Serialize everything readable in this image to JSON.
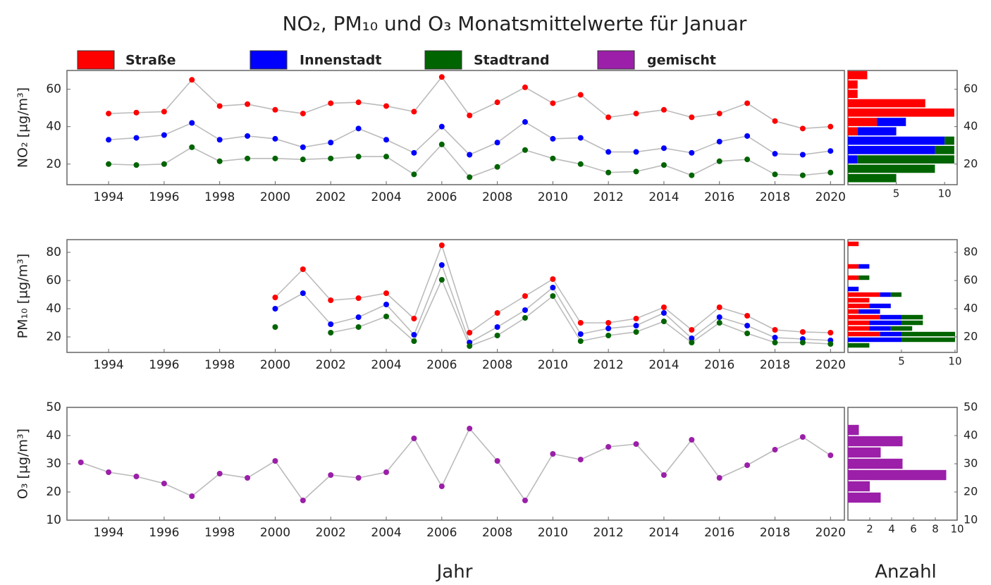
{
  "chart_data": [
    {
      "type": "line",
      "title": "NO₂, PM₁₀ und O₃ Monatsmittelwerte für Januar",
      "ylabel": "NO₂ [µg/m³]",
      "x": [
        1994,
        1995,
        1996,
        1997,
        1998,
        1999,
        2000,
        2001,
        2002,
        2003,
        2004,
        2005,
        2006,
        2007,
        2008,
        2009,
        2010,
        2011,
        2012,
        2013,
        2014,
        2015,
        2016,
        2017,
        2018,
        2019,
        2020
      ],
      "series": [
        {
          "name": "Straße",
          "color": "#ff0000",
          "values": [
            47,
            47.5,
            48,
            65,
            51,
            52,
            49,
            47,
            52.5,
            53,
            51,
            48,
            66.5,
            46,
            53,
            61,
            52.5,
            57,
            45,
            47,
            49,
            45,
            47,
            52.5,
            43,
            39,
            40
          ]
        },
        {
          "name": "Innenstadt",
          "color": "#0000ff",
          "values": [
            33,
            34,
            35.5,
            42,
            33,
            35,
            33.5,
            29,
            31.5,
            39,
            33,
            26,
            40,
            25,
            31.5,
            42.5,
            33.5,
            34,
            26.5,
            26.5,
            28.5,
            26,
            32,
            35,
            25.5,
            25,
            27
          ]
        },
        {
          "name": "Stadtrand",
          "color": "#006400",
          "values": [
            20,
            19.5,
            20,
            29,
            21.5,
            23,
            23,
            22.5,
            23,
            24,
            24,
            14.5,
            30.5,
            13,
            18.5,
            27.5,
            23,
            20,
            15.5,
            16,
            19.5,
            14,
            21.5,
            22.5,
            14.5,
            14,
            15.5
          ]
        }
      ],
      "xlim": [
        1992.5,
        2020.5
      ],
      "xticks": [
        1994,
        1996,
        1998,
        2000,
        2002,
        2004,
        2006,
        2008,
        2010,
        2012,
        2014,
        2016,
        2018,
        2020
      ],
      "ylim": [
        9,
        70
      ],
      "yticks": [
        20,
        40,
        60
      ],
      "line_color": "#bbbbbb"
    },
    {
      "type": "histogram",
      "orientation": "horizontal",
      "bins": [
        10,
        15,
        20,
        25,
        30,
        35,
        40,
        45,
        50,
        55,
        60,
        65,
        70
      ],
      "series": [
        {
          "color": "#ff0000",
          "values": [
            0,
            0,
            0,
            0,
            0,
            1,
            3,
            11,
            8,
            1,
            1,
            2
          ]
        },
        {
          "color": "#0000ff",
          "values": [
            0,
            0,
            1,
            9,
            10,
            4,
            3,
            0,
            0,
            0,
            0,
            0
          ]
        },
        {
          "color": "#006400",
          "values": [
            5,
            9,
            10,
            2,
            1,
            0,
            0,
            0,
            0,
            0,
            0,
            0
          ]
        }
      ],
      "xlim": [
        0,
        11.3
      ],
      "xticks": [
        5,
        10
      ],
      "ylim": [
        9,
        70
      ],
      "yticks": [
        20,
        40,
        60
      ]
    },
    {
      "type": "line",
      "ylabel": "PM₁₀ [µg/m³]",
      "x": [
        2000,
        2001,
        2002,
        2003,
        2004,
        2005,
        2006,
        2007,
        2008,
        2009,
        2010,
        2011,
        2012,
        2013,
        2014,
        2015,
        2016,
        2017,
        2018,
        2019,
        2020
      ],
      "series": [
        {
          "name": "Straße",
          "color": "#ff0000",
          "values": [
            48,
            68,
            46,
            47.5,
            51,
            33,
            85,
            23,
            37,
            49,
            61,
            30,
            30,
            33,
            41,
            25,
            41,
            35,
            25,
            23.5,
            23
          ]
        },
        {
          "name": "Innenstadt",
          "color": "#0000ff",
          "values": [
            40,
            51,
            29,
            34,
            43,
            21.5,
            71,
            16,
            27,
            39,
            55,
            22,
            26,
            28,
            37,
            19,
            34,
            28,
            19.5,
            18.5,
            17.5
          ]
        },
        {
          "name": "Stadtrand",
          "color": "#006400",
          "values": [
            27,
            null,
            23,
            27,
            34.5,
            17,
            60.5,
            13.5,
            21,
            33.5,
            49,
            17,
            21,
            23.5,
            31,
            16,
            30,
            22.5,
            16,
            16,
            15
          ]
        }
      ],
      "xlim": [
        1992.5,
        2020.5
      ],
      "xticks": [
        1994,
        1996,
        1998,
        2000,
        2002,
        2004,
        2006,
        2008,
        2010,
        2012,
        2014,
        2016,
        2018,
        2020
      ],
      "ylim": [
        9,
        89
      ],
      "yticks": [
        20,
        40,
        60,
        80
      ],
      "line_color": "#bbbbbb"
    },
    {
      "type": "histogram",
      "orientation": "horizontal",
      "bins": [
        12,
        16,
        20,
        24,
        28,
        32,
        36,
        40,
        44,
        48,
        52,
        56,
        60,
        64,
        68,
        72,
        76,
        80,
        84,
        88
      ],
      "series": [
        {
          "color": "#ff0000",
          "values": [
            0,
            0,
            3,
            2,
            2,
            3,
            1,
            2,
            2,
            3,
            0,
            0,
            1,
            0,
            1,
            0,
            0,
            0,
            1
          ]
        },
        {
          "color": "#0000ff",
          "values": [
            0,
            5,
            2,
            2,
            3,
            2,
            2,
            2,
            0,
            1,
            1,
            0,
            0,
            0,
            1,
            0,
            0,
            0,
            0
          ]
        },
        {
          "color": "#006400",
          "values": [
            2,
            5,
            5,
            2,
            2,
            2,
            0,
            0,
            0,
            1,
            0,
            0,
            1,
            0,
            0,
            0,
            0,
            0,
            0
          ]
        }
      ],
      "xlim": [
        0,
        10.2
      ],
      "xticks": [
        5,
        10
      ],
      "ylim": [
        9,
        89
      ],
      "yticks": [
        20,
        40,
        60,
        80
      ]
    },
    {
      "type": "line",
      "ylabel": "O₃ [µg/m³]",
      "xlabel": "Jahr",
      "x": [
        1993,
        1994,
        1995,
        1996,
        1997,
        1998,
        1999,
        2000,
        2001,
        2002,
        2003,
        2004,
        2005,
        2006,
        2007,
        2008,
        2009,
        2010,
        2011,
        2012,
        2013,
        2014,
        2015,
        2016,
        2017,
        2018,
        2019,
        2020
      ],
      "series": [
        {
          "name": "gemischt",
          "color": "#9b1fa8",
          "values": [
            30.5,
            27,
            25.5,
            23,
            18.5,
            26.5,
            25,
            31,
            17,
            26,
            25,
            27,
            39,
            22,
            42.5,
            31,
            17,
            33.5,
            31.5,
            36,
            37,
            26,
            38.5,
            25,
            29.5,
            35,
            39.5,
            33
          ]
        }
      ],
      "xlim": [
        1992.5,
        2020.5
      ],
      "xticks": [
        1994,
        1996,
        1998,
        2000,
        2002,
        2004,
        2006,
        2008,
        2010,
        2012,
        2014,
        2016,
        2018,
        2020
      ],
      "ylim": [
        10,
        50
      ],
      "yticks": [
        10,
        20,
        30,
        40,
        50
      ],
      "line_color": "#bbbbbb"
    },
    {
      "type": "histogram",
      "orientation": "horizontal",
      "xlabel": "Anzahl",
      "bins": [
        16,
        20,
        24,
        28,
        32,
        36,
        40,
        44
      ],
      "series": [
        {
          "color": "#9b1fa8",
          "values": [
            3,
            2,
            9,
            5,
            3,
            5,
            1
          ]
        }
      ],
      "xlim": [
        0,
        10
      ],
      "xticks": [
        2,
        4,
        6,
        8,
        10
      ],
      "ylim": [
        10,
        50
      ],
      "yticks": [
        10,
        20,
        30,
        40,
        50
      ]
    }
  ]
}
